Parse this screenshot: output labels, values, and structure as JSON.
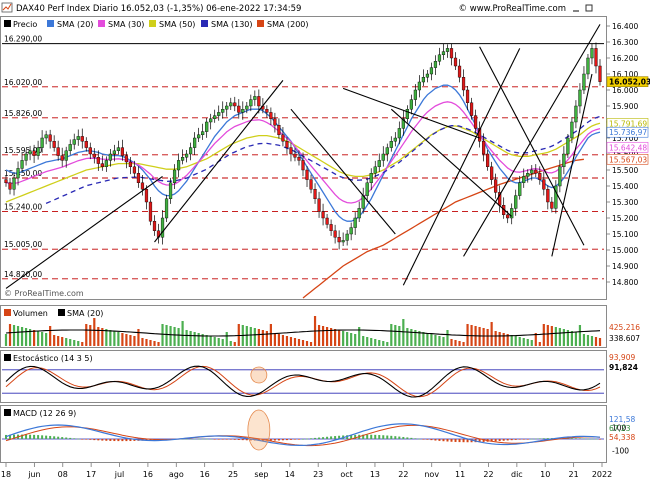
{
  "header": {
    "title": "DAX40 Perf Index Diario 16.052,03 (-1,35%) 06-ene-2022 17:34:59",
    "site": "© www.ProRealTime.com"
  },
  "icons": [
    "chart-icon",
    "minimize-icon",
    "maximize-icon"
  ],
  "chart_data": [
    {
      "type": "line",
      "name": "price-panel",
      "legend": [
        {
          "label": "Precio",
          "color": "#000000"
        },
        {
          "label": "SMA (20)",
          "color": "#3c78d8"
        },
        {
          "label": "SMA (30)",
          "color": "#e34cdc"
        },
        {
          "label": "SMA (50)",
          "color": "#cfcf1a"
        },
        {
          "label": "SMA (130)",
          "color": "#2a2ab5"
        },
        {
          "label": "SMA (200)",
          "color": "#d64515"
        }
      ],
      "watermark": "© ProRealTime.com",
      "ylim": [
        14700,
        16450
      ],
      "yticks": [
        14800,
        14900,
        15000,
        15100,
        15200,
        15300,
        15400,
        15500,
        15600,
        15700,
        15800,
        15900,
        16000,
        16100,
        16200,
        16300,
        16400
      ],
      "ytick_labels": [
        "14.800",
        "14.900",
        "15.000",
        "15.100",
        "15.200",
        "15.300",
        "15.400",
        "15.500",
        "15.600",
        "15.700",
        "15.800",
        "15.900",
        "16.000",
        "16.100",
        "16.200",
        "16.300",
        "16.400"
      ],
      "levels": [
        {
          "label": "16.290,00",
          "value": 16290,
          "style": "solid"
        },
        {
          "label": "16.020,00",
          "value": 16020,
          "style": "dash"
        },
        {
          "label": "15.826,00",
          "value": 15826,
          "style": "dash"
        },
        {
          "label": "15.595,00",
          "value": 15595,
          "style": "dash"
        },
        {
          "label": "15.450,00",
          "value": 15450,
          "style": "dash"
        },
        {
          "label": "15.240,00",
          "value": 15240,
          "style": "dash"
        },
        {
          "label": "15.005,00",
          "value": 15005,
          "style": "dash"
        },
        {
          "label": "14.820,00",
          "value": 14820,
          "style": "dash"
        }
      ],
      "value_tags": [
        {
          "label": "16.052,03",
          "value": 16052,
          "bg": "#f3d000",
          "fg": "#000000"
        },
        {
          "label": "15.791,69",
          "value": 15791,
          "bg": "#ffffff",
          "fg": "#b8b800"
        },
        {
          "label": "15.736,97",
          "value": 15736,
          "bg": "#ffffff",
          "fg": "#3c78d8"
        },
        {
          "label": "15.642,48",
          "value": 15642,
          "bg": "#ffffff",
          "fg": "#e34cdc"
        },
        {
          "label": "15.567,03",
          "value": 15567,
          "bg": "#ffffff",
          "fg": "#d64515"
        }
      ],
      "close": [
        15420,
        15380,
        15450,
        15510,
        15560,
        15600,
        15620,
        15590,
        15640,
        15700,
        15720,
        15680,
        15640,
        15590,
        15560,
        15620,
        15660,
        15690,
        15710,
        15680,
        15640,
        15600,
        15580,
        15540,
        15520,
        15560,
        15600,
        15620,
        15640,
        15590,
        15550,
        15520,
        15480,
        15420,
        15380,
        15300,
        15180,
        15120,
        15080,
        15200,
        15320,
        15420,
        15500,
        15560,
        15580,
        15600,
        15640,
        15700,
        15720,
        15740,
        15800,
        15820,
        15840,
        15860,
        15880,
        15900,
        15920,
        15900,
        15860,
        15880,
        15900,
        15940,
        15960,
        15900,
        15880,
        15860,
        15820,
        15780,
        15720,
        15680,
        15640,
        15600,
        15580,
        15560,
        15500,
        15440,
        15380,
        15320,
        15240,
        15200,
        15160,
        15120,
        15080,
        15050,
        15060,
        15100,
        15140,
        15200,
        15260,
        15340,
        15420,
        15480,
        15520,
        15560,
        15600,
        15640,
        15680,
        15700,
        15760,
        15820,
        15880,
        15940,
        16000,
        16050,
        16080,
        16100,
        16140,
        16180,
        16220,
        16240,
        16260,
        16200,
        16150,
        16080,
        16000,
        15920,
        15840,
        15760,
        15680,
        15600,
        15520,
        15440,
        15360,
        15280,
        15220,
        15200,
        15260,
        15340,
        15420,
        15460,
        15480,
        15500,
        15480,
        15440,
        15380,
        15300,
        15260,
        15400,
        15520,
        15600,
        15700,
        15800,
        15900,
        16000,
        16100,
        16200,
        16260,
        16150,
        16052
      ],
      "sma20": [
        15500,
        15490,
        15480,
        15480,
        15490,
        15500,
        15510,
        15520,
        15530,
        15540,
        15550,
        15555,
        15560,
        15565,
        15570,
        15580,
        15590,
        15600,
        15610,
        15615,
        15620,
        15620,
        15615,
        15610,
        15600,
        15595,
        15590,
        15590,
        15590,
        15585,
        15575,
        15560,
        15545,
        15525,
        15500,
        15470,
        15440,
        15400,
        15370,
        15350,
        15340,
        15340,
        15350,
        15370,
        15400,
        15430,
        15470,
        15510,
        15550,
        15590,
        15630,
        15670,
        15710,
        15740,
        15770,
        15800,
        15820,
        15840,
        15850,
        15860,
        15870,
        15880,
        15880,
        15880,
        15870,
        15850,
        15830,
        15800,
        15770,
        15740,
        15710,
        15680,
        15640,
        15600,
        15560,
        15520,
        15480,
        15440,
        15400,
        15360,
        15320,
        15280,
        15240,
        15210,
        15190,
        15180,
        15180,
        15190,
        15210,
        15240,
        15280,
        15320,
        15370,
        15420,
        15470,
        15520,
        15570,
        15620,
        15670,
        15720,
        15770,
        15820,
        15860,
        15900,
        15940,
        15970,
        15990,
        16010,
        16020,
        16030,
        16030,
        16020,
        16000,
        15970,
        15930,
        15880,
        15830,
        15780,
        15730,
        15680,
        15630,
        15590,
        15550,
        15510,
        15480,
        15450,
        15430,
        15420,
        15420,
        15430,
        15440,
        15450,
        15450,
        15440,
        15420,
        15400,
        15390,
        15400,
        15420,
        15450,
        15490,
        15530,
        15580,
        15620,
        15660,
        15700,
        15720,
        15730,
        15737
      ],
      "sma50": [
        15300,
        15310,
        15320,
        15330,
        15340,
        15350,
        15360,
        15370,
        15380,
        15390,
        15400,
        15410,
        15420,
        15430,
        15440,
        15450,
        15460,
        15470,
        15480,
        15490,
        15500,
        15505,
        15510,
        15515,
        15520,
        15525,
        15530,
        15535,
        15540,
        15540,
        15540,
        15540,
        15540,
        15540,
        15535,
        15530,
        15525,
        15520,
        15515,
        15510,
        15505,
        15505,
        15505,
        15510,
        15515,
        15520,
        15530,
        15540,
        15550,
        15560,
        15570,
        15585,
        15600,
        15615,
        15630,
        15645,
        15660,
        15670,
        15680,
        15690,
        15700,
        15705,
        15710,
        15715,
        15715,
        15715,
        15710,
        15705,
        15700,
        15690,
        15680,
        15670,
        15655,
        15640,
        15625,
        15610,
        15595,
        15580,
        15565,
        15550,
        15535,
        15520,
        15505,
        15490,
        15480,
        15470,
        15465,
        15460,
        15460,
        15460,
        15465,
        15470,
        15480,
        15490,
        15500,
        15515,
        15530,
        15545,
        15560,
        15580,
        15600,
        15620,
        15640,
        15660,
        15680,
        15700,
        15720,
        15735,
        15750,
        15760,
        15770,
        15775,
        15775,
        15770,
        15760,
        15750,
        15740,
        15725,
        15710,
        15695,
        15680,
        15665,
        15650,
        15635,
        15620,
        15605,
        15595,
        15590,
        15585,
        15585,
        15585,
        15590,
        15595,
        15600,
        15605,
        15610,
        15620,
        15630,
        15645,
        15660,
        15675,
        15690,
        15705,
        15720,
        15740,
        15760,
        15775,
        15785,
        15792
      ],
      "sma200": [
        null,
        null,
        null,
        null,
        null,
        null,
        null,
        null,
        null,
        null,
        null,
        null,
        null,
        null,
        null,
        null,
        null,
        null,
        null,
        null,
        null,
        null,
        null,
        null,
        null,
        null,
        null,
        null,
        null,
        null,
        null,
        null,
        null,
        null,
        null,
        null,
        null,
        null,
        null,
        null,
        null,
        null,
        null,
        null,
        null,
        null,
        null,
        null,
        null,
        null,
        null,
        null,
        null,
        null,
        null,
        null,
        null,
        null,
        null,
        null,
        null,
        null,
        null,
        null,
        null,
        null,
        null,
        null,
        null,
        null,
        null,
        null,
        null,
        null,
        14700,
        14720,
        14740,
        14760,
        14780,
        14800,
        14820,
        14840,
        14860,
        14880,
        14900,
        14915,
        14930,
        14945,
        14960,
        14975,
        14990,
        15000,
        15010,
        15020,
        15030,
        15045,
        15060,
        15075,
        15090,
        15105,
        15120,
        15135,
        15150,
        15165,
        15180,
        15195,
        15210,
        15225,
        15240,
        15255,
        15270,
        15285,
        15300,
        15310,
        15320,
        15330,
        15340,
        15350,
        15360,
        15370,
        15380,
        15390,
        15400,
        15410,
        15418,
        15426,
        15434,
        15442,
        15450,
        15458,
        15466,
        15474,
        15482,
        15490,
        15498,
        15506,
        15514,
        15522,
        15530,
        15538,
        15546,
        15554,
        15560,
        15564,
        15567
      ]
    },
    {
      "type": "bar",
      "name": "volume-panel",
      "legend": [
        {
          "label": "Volumen",
          "color": "#d64515"
        },
        {
          "label": "SMA (20)",
          "color": "#000000"
        }
      ],
      "value_tags": [
        {
          "label": "425.216",
          "fg": "#d64515"
        },
        {
          "label": "338.607",
          "fg": "#000000"
        }
      ]
    },
    {
      "type": "line",
      "name": "stochastic-panel",
      "legend": [
        {
          "label": "Estocástico (14 3 5)",
          "color": "#000000"
        }
      ],
      "value_tags": [
        {
          "label": "93,909",
          "fg": "#d64515"
        },
        {
          "label": "91,824",
          "fg": "#000000"
        }
      ],
      "ylim": [
        0,
        100
      ],
      "bands": [
        80,
        20
      ]
    },
    {
      "type": "line",
      "name": "macd-panel",
      "legend": [
        {
          "label": "MACD (12 26 9)",
          "color": "#000000"
        }
      ],
      "value_tags": [
        {
          "label": "121,58",
          "fg": "#3c78d8"
        },
        {
          "label": "67,23",
          "fg": "#2e8b3a"
        },
        {
          "label": "54,338",
          "fg": "#d64515"
        }
      ],
      "yticks": [
        {
          "label": "100",
          "value": 100
        },
        {
          "label": "-100",
          "value": -100
        }
      ],
      "ylim": [
        -180,
        180
      ]
    }
  ],
  "xaxis": {
    "labels": [
      "18",
      "jun",
      "08",
      "17",
      "jul",
      "16",
      "ago",
      "16",
      "25",
      "sep",
      "14",
      "23",
      "oct",
      "13",
      "22",
      "nov",
      "11",
      "22",
      "dic",
      "10",
      "21",
      "2022"
    ]
  }
}
